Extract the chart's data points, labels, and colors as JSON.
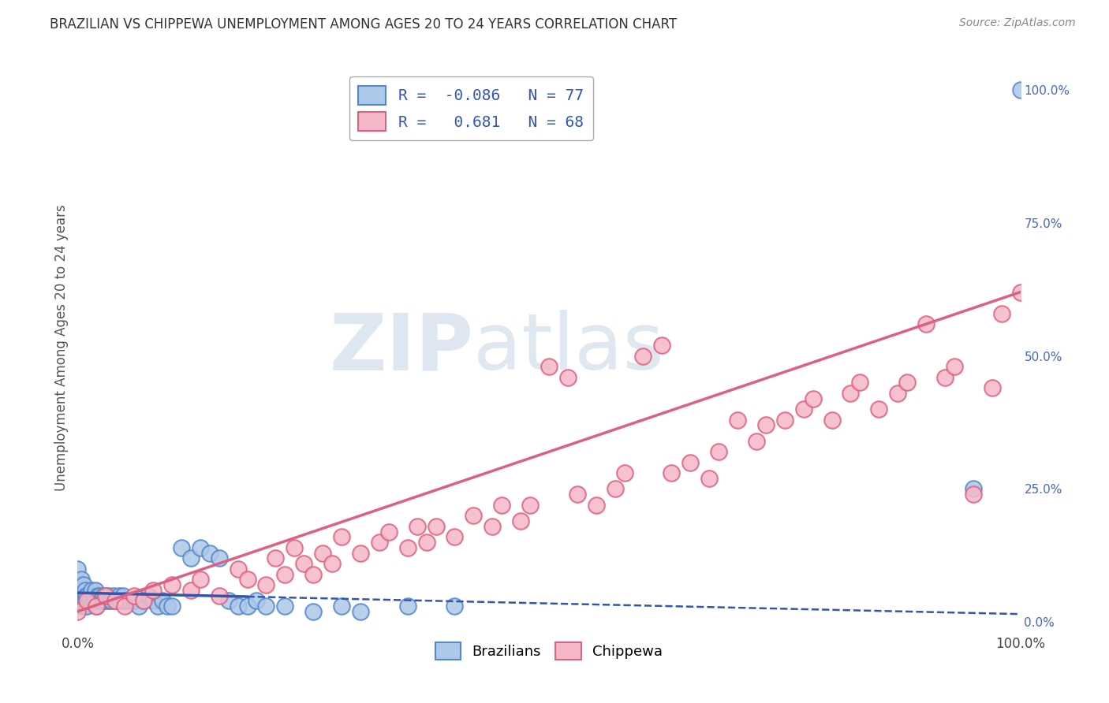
{
  "title": "BRAZILIAN VS CHIPPEWA UNEMPLOYMENT AMONG AGES 20 TO 24 YEARS CORRELATION CHART",
  "source": "Source: ZipAtlas.com",
  "ylabel": "Unemployment Among Ages 20 to 24 years",
  "xlim": [
    0.0,
    1.0
  ],
  "ylim": [
    -0.02,
    1.05
  ],
  "xtick_vals": [
    0.0,
    1.0
  ],
  "xticklabels": [
    "0.0%",
    "100.0%"
  ],
  "ytick_right_vals": [
    0.0,
    0.25,
    0.5,
    0.75,
    1.0
  ],
  "ytick_right_labels": [
    "0.0%",
    "25.0%",
    "50.0%",
    "75.0%",
    "100.0%"
  ],
  "brazilian_color": "#adc8e8",
  "brazilian_edge": "#5588cc",
  "chippewa_color": "#f5b8c8",
  "chippewa_edge": "#e06080",
  "trend_brazilian_color": "#3355aa",
  "trend_chippewa_color": "#dd6080",
  "background_color": "#ffffff",
  "grid_color": "#cccccc",
  "watermark_color": "#cccccc",
  "right_tick_color": "#4466cc",
  "title_color": "#333333",
  "source_color": "#888888",
  "legend_text_color": "#3355bb",
  "brazilian_R": -0.086,
  "brazilian_N": 77,
  "chippewa_R": 0.681,
  "chippewa_N": 68,
  "braz_x": [
    0.0,
    0.0,
    0.0,
    0.001,
    0.001,
    0.002,
    0.002,
    0.003,
    0.003,
    0.004,
    0.004,
    0.005,
    0.005,
    0.006,
    0.006,
    0.007,
    0.007,
    0.008,
    0.008,
    0.009,
    0.01,
    0.01,
    0.011,
    0.012,
    0.013,
    0.014,
    0.015,
    0.016,
    0.017,
    0.018,
    0.019,
    0.02,
    0.021,
    0.022,
    0.023,
    0.025,
    0.027,
    0.028,
    0.03,
    0.032,
    0.034,
    0.036,
    0.038,
    0.04,
    0.042,
    0.044,
    0.046,
    0.048,
    0.05,
    0.055,
    0.06,
    0.065,
    0.07,
    0.075,
    0.08,
    0.085,
    0.09,
    0.095,
    0.1,
    0.11,
    0.12,
    0.13,
    0.14,
    0.15,
    0.16,
    0.17,
    0.18,
    0.19,
    0.2,
    0.22,
    0.25,
    0.28,
    0.3,
    0.35,
    0.4,
    0.95,
    1.0
  ],
  "braz_y": [
    0.04,
    0.06,
    0.1,
    0.05,
    0.07,
    0.04,
    0.06,
    0.04,
    0.06,
    0.04,
    0.08,
    0.03,
    0.05,
    0.04,
    0.07,
    0.03,
    0.05,
    0.04,
    0.06,
    0.05,
    0.03,
    0.05,
    0.04,
    0.04,
    0.05,
    0.04,
    0.06,
    0.04,
    0.05,
    0.04,
    0.06,
    0.03,
    0.05,
    0.04,
    0.05,
    0.04,
    0.05,
    0.04,
    0.04,
    0.05,
    0.04,
    0.04,
    0.05,
    0.04,
    0.04,
    0.05,
    0.04,
    0.05,
    0.04,
    0.04,
    0.04,
    0.03,
    0.04,
    0.05,
    0.04,
    0.03,
    0.04,
    0.03,
    0.03,
    0.14,
    0.12,
    0.14,
    0.13,
    0.12,
    0.04,
    0.03,
    0.03,
    0.04,
    0.03,
    0.03,
    0.02,
    0.03,
    0.02,
    0.03,
    0.03,
    0.25,
    1.0
  ],
  "chip_x": [
    0.0,
    0.01,
    0.02,
    0.03,
    0.04,
    0.05,
    0.06,
    0.07,
    0.08,
    0.1,
    0.12,
    0.13,
    0.15,
    0.17,
    0.18,
    0.2,
    0.21,
    0.22,
    0.23,
    0.24,
    0.25,
    0.26,
    0.27,
    0.28,
    0.3,
    0.32,
    0.33,
    0.35,
    0.36,
    0.37,
    0.38,
    0.4,
    0.42,
    0.44,
    0.45,
    0.47,
    0.48,
    0.5,
    0.52,
    0.53,
    0.55,
    0.57,
    0.58,
    0.6,
    0.62,
    0.63,
    0.65,
    0.67,
    0.68,
    0.7,
    0.72,
    0.73,
    0.75,
    0.77,
    0.78,
    0.8,
    0.82,
    0.83,
    0.85,
    0.87,
    0.88,
    0.9,
    0.92,
    0.93,
    0.95,
    0.97,
    0.98,
    1.0
  ],
  "chip_y": [
    0.02,
    0.04,
    0.03,
    0.05,
    0.04,
    0.03,
    0.05,
    0.04,
    0.06,
    0.07,
    0.06,
    0.08,
    0.05,
    0.1,
    0.08,
    0.07,
    0.12,
    0.09,
    0.14,
    0.11,
    0.09,
    0.13,
    0.11,
    0.16,
    0.13,
    0.15,
    0.17,
    0.14,
    0.18,
    0.15,
    0.18,
    0.16,
    0.2,
    0.18,
    0.22,
    0.19,
    0.22,
    0.48,
    0.46,
    0.24,
    0.22,
    0.25,
    0.28,
    0.5,
    0.52,
    0.28,
    0.3,
    0.27,
    0.32,
    0.38,
    0.34,
    0.37,
    0.38,
    0.4,
    0.42,
    0.38,
    0.43,
    0.45,
    0.4,
    0.43,
    0.45,
    0.56,
    0.46,
    0.48,
    0.24,
    0.44,
    0.58,
    0.62
  ]
}
